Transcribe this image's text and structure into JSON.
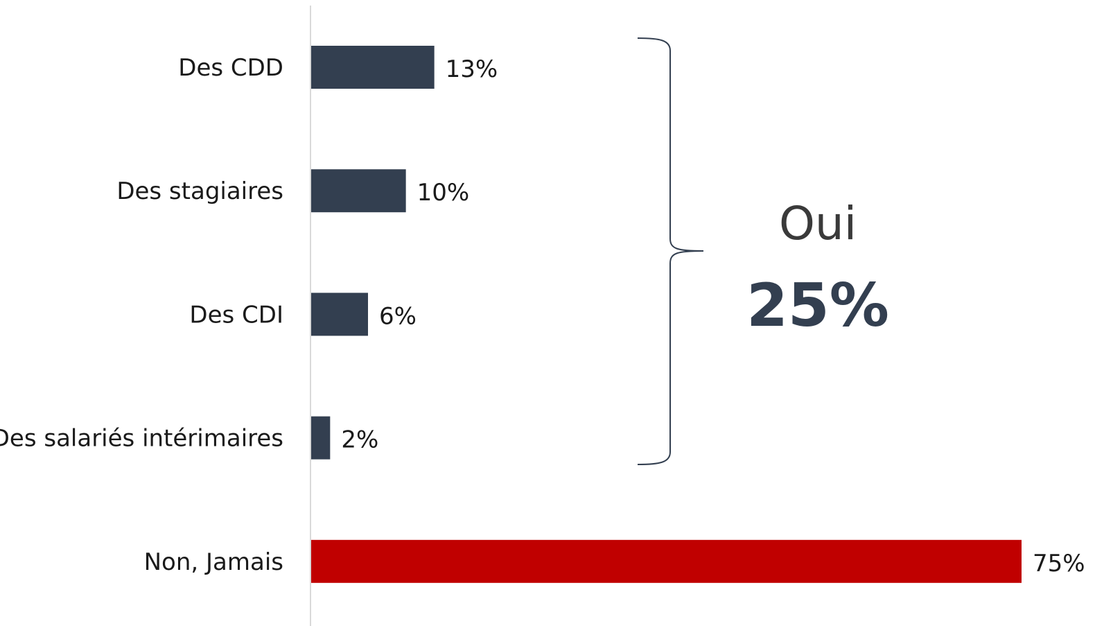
{
  "chart_data": {
    "type": "bar",
    "orientation": "horizontal",
    "categories": [
      "Des CDD",
      "Des stagiaires",
      "Des CDI",
      "Des salariés intérimaires",
      "Non, Jamais"
    ],
    "values": [
      13,
      10,
      6,
      2,
      75
    ],
    "value_labels": [
      "13%",
      "10%",
      "6%",
      "2%",
      "75%"
    ],
    "bar_colors": [
      "#333f50",
      "#333f50",
      "#333f50",
      "#333f50",
      "#c00000"
    ],
    "xlim": [
      0,
      75
    ],
    "grid": false,
    "legend": "none",
    "annotation": {
      "label": "Oui",
      "value": "25%",
      "groups_categories": [
        "Des CDD",
        "Des stagiaires",
        "Des CDI",
        "Des salariés intérimaires"
      ]
    }
  },
  "colors": {
    "bar_default": "#333f50",
    "bar_highlight": "#c00000",
    "axis": "#d9d9d9",
    "brace": "#333f50"
  }
}
